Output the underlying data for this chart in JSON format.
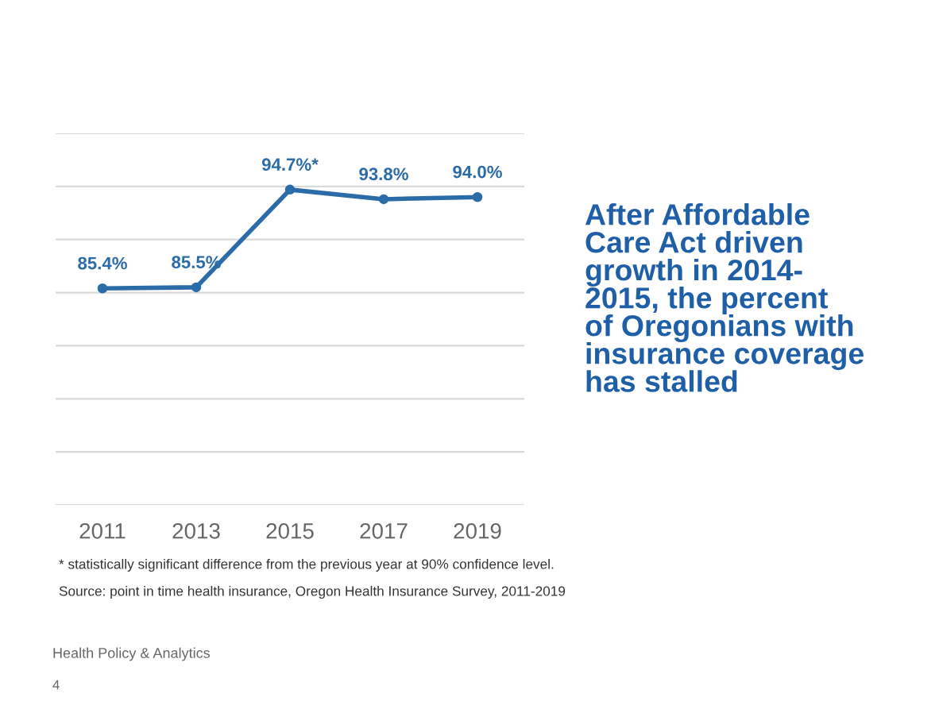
{
  "chart_data": {
    "type": "line",
    "title": "After Affordable\nCare Act driven\ngrowth in 2014-\n2015, the percent\nof Oregonians with\ninsurance coverage\nhas stalled",
    "categories": [
      "2011",
      "2013",
      "2015",
      "2017",
      "2019"
    ],
    "series": [
      {
        "color": "#2b6ca8",
        "values": [
          85.4,
          85.5,
          94.7,
          93.8,
          94.0
        ],
        "value_labels": [
          "85.4%",
          "85.5%",
          "94.7%*",
          "93.8%",
          "94.0%"
        ]
      }
    ],
    "ylim": [
      65,
      100
    ],
    "yticks": [
      {
        "value": 65,
        "label": null
      },
      {
        "value": 70,
        "label": null
      },
      {
        "value": 75,
        "label": null
      },
      {
        "value": 80,
        "label": null
      },
      {
        "value": 85,
        "label": null
      },
      {
        "value": 90,
        "label": null
      },
      {
        "value": 95,
        "label": null
      },
      {
        "value": 100,
        "label": null
      }
    ],
    "tick_labels": "x",
    "grid": "y",
    "legend": false,
    "marker": "circle",
    "line_style": "solid",
    "annotations": [
      "* statistically significant difference from the previous year at 90% confidence level.",
      "Source: point in time health insurance, Oregon Health Insurance Survey, 2011-2019",
      "Health Policy & Analytics",
      "4"
    ]
  }
}
